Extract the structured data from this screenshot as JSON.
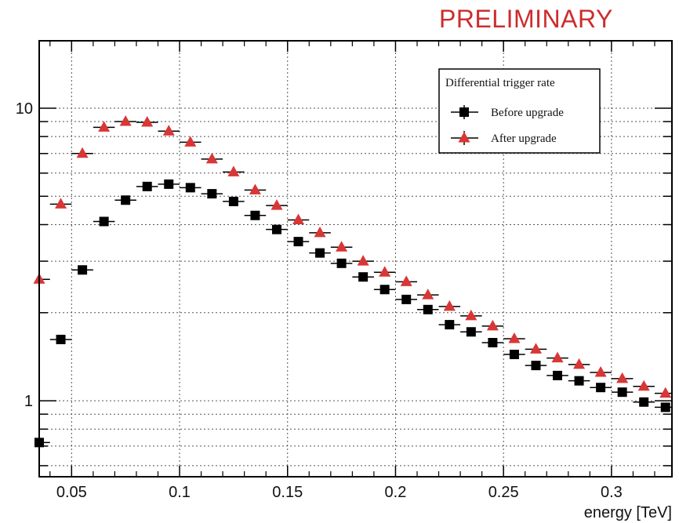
{
  "header": {
    "watermark": "PRELIMINARY",
    "watermark_color": "#cc2d2d"
  },
  "chart_data": {
    "type": "scatter",
    "title": "",
    "xlabel": "energy [TeV]",
    "ylabel": "",
    "xlim": [
      0.035,
      0.328
    ],
    "ylim": [
      0.55,
      17
    ],
    "yscale": "log",
    "grid": true,
    "x_ticks": [
      "0.05",
      "0.1",
      "0.15",
      "0.2",
      "0.25",
      "0.3"
    ],
    "y_ticks": [
      "1",
      "10"
    ],
    "legend": {
      "title": "Differential trigger rate",
      "placement": "top-right"
    },
    "x": [
      0.035,
      0.045,
      0.055,
      0.065,
      0.075,
      0.085,
      0.095,
      0.105,
      0.115,
      0.125,
      0.135,
      0.145,
      0.155,
      0.165,
      0.175,
      0.185,
      0.195,
      0.205,
      0.215,
      0.225,
      0.235,
      0.245,
      0.255,
      0.265,
      0.275,
      0.285,
      0.295,
      0.305,
      0.315,
      0.325
    ],
    "series": [
      {
        "name": "Before upgrade",
        "marker": "square",
        "color": "#000000",
        "values": [
          0.72,
          1.62,
          2.8,
          4.1,
          4.85,
          5.4,
          5.5,
          5.35,
          5.1,
          4.8,
          4.3,
          3.85,
          3.5,
          3.2,
          2.95,
          2.65,
          2.4,
          2.22,
          2.05,
          1.82,
          1.72,
          1.58,
          1.44,
          1.32,
          1.22,
          1.17,
          1.11,
          1.07,
          0.99,
          0.95
        ]
      },
      {
        "name": "After upgrade",
        "marker": "triangle",
        "color": "#d93636",
        "values": [
          2.6,
          4.7,
          7.0,
          8.6,
          9.0,
          8.95,
          8.35,
          7.65,
          6.7,
          6.05,
          5.25,
          4.65,
          4.15,
          3.75,
          3.35,
          3.0,
          2.75,
          2.55,
          2.3,
          2.1,
          1.95,
          1.8,
          1.63,
          1.5,
          1.4,
          1.33,
          1.25,
          1.19,
          1.12,
          1.06
        ]
      }
    ]
  }
}
